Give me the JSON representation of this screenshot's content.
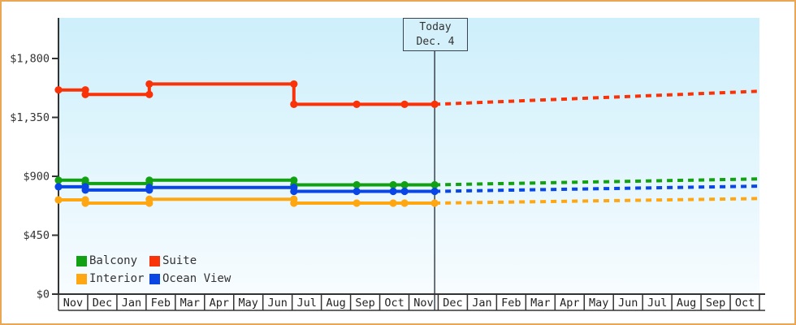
{
  "window": {
    "border_color": "#e9a755",
    "background": "#ffffff"
  },
  "today_marker": {
    "title": "Today",
    "date": "Dec. 4",
    "month_offset": 12.88
  },
  "chart_data": {
    "type": "line",
    "title": "",
    "xlabel": "",
    "ylabel": "",
    "grid": false,
    "plot_background": {
      "top": "#cdeffb",
      "bottom": "#f7fcff"
    },
    "axis_color": "#333333",
    "ylim": [
      0,
      2100
    ],
    "y_ticks": [
      {
        "label": "$0",
        "value": 0
      },
      {
        "label": "$450",
        "value": 450
      },
      {
        "label": "$900",
        "value": 900
      },
      {
        "label": "$1,350",
        "value": 1350
      },
      {
        "label": "$1,800",
        "value": 1800
      }
    ],
    "categories": [
      "Nov",
      "Dec",
      "Jan",
      "Feb",
      "Mar",
      "Apr",
      "May",
      "Jun",
      "Jul",
      "Aug",
      "Sep",
      "Oct",
      "Nov",
      "Dec",
      "Jan",
      "Feb",
      "Mar",
      "Apr",
      "May",
      "Jun",
      "Jul",
      "Aug",
      "Sep",
      "Oct"
    ],
    "x_axis_note": "month_offset 0 = start of first Nov; 24 = right edge of plot",
    "series": [
      {
        "name": "Suite",
        "color": "#fa3208",
        "history": [
          {
            "m": 0.0,
            "price": 1560
          },
          {
            "m": 0.92,
            "price": 1560
          },
          {
            "m": 0.92,
            "price": 1525
          },
          {
            "m": 3.11,
            "price": 1525
          },
          {
            "m": 3.11,
            "price": 1605
          },
          {
            "m": 8.06,
            "price": 1605
          },
          {
            "m": 8.06,
            "price": 1450
          },
          {
            "m": 10.21,
            "price": 1450
          },
          {
            "m": 11.85,
            "price": 1450
          },
          {
            "m": 12.88,
            "price": 1450
          }
        ],
        "forecast": {
          "end_m": 24,
          "end_price": 1550
        }
      },
      {
        "name": "Balcony",
        "color": "#12a112",
        "history": [
          {
            "m": 0.0,
            "price": 870
          },
          {
            "m": 0.92,
            "price": 870
          },
          {
            "m": 0.92,
            "price": 845
          },
          {
            "m": 3.11,
            "price": 845
          },
          {
            "m": 3.11,
            "price": 870
          },
          {
            "m": 8.06,
            "price": 870
          },
          {
            "m": 8.06,
            "price": 835
          },
          {
            "m": 10.21,
            "price": 835
          },
          {
            "m": 11.46,
            "price": 835
          },
          {
            "m": 11.85,
            "price": 835
          },
          {
            "m": 12.88,
            "price": 835
          }
        ],
        "forecast": {
          "end_m": 24,
          "end_price": 880
        }
      },
      {
        "name": "Ocean View",
        "color": "#0a46e4",
        "history": [
          {
            "m": 0.0,
            "price": 820
          },
          {
            "m": 0.92,
            "price": 820
          },
          {
            "m": 0.92,
            "price": 795
          },
          {
            "m": 3.11,
            "price": 795
          },
          {
            "m": 3.11,
            "price": 815
          },
          {
            "m": 8.06,
            "price": 815
          },
          {
            "m": 8.06,
            "price": 785
          },
          {
            "m": 10.21,
            "price": 785
          },
          {
            "m": 11.46,
            "price": 785
          },
          {
            "m": 11.85,
            "price": 785
          },
          {
            "m": 12.88,
            "price": 785
          }
        ],
        "forecast": {
          "end_m": 24,
          "end_price": 825
        }
      },
      {
        "name": "Interior",
        "color": "#ffa712",
        "history": [
          {
            "m": 0.0,
            "price": 720
          },
          {
            "m": 0.92,
            "price": 720
          },
          {
            "m": 0.92,
            "price": 695
          },
          {
            "m": 3.11,
            "price": 695
          },
          {
            "m": 3.11,
            "price": 725
          },
          {
            "m": 8.06,
            "price": 725
          },
          {
            "m": 8.06,
            "price": 695
          },
          {
            "m": 10.21,
            "price": 695
          },
          {
            "m": 11.46,
            "price": 695
          },
          {
            "m": 11.85,
            "price": 695
          },
          {
            "m": 12.88,
            "price": 695
          }
        ],
        "forecast": {
          "end_m": 24,
          "end_price": 730
        }
      }
    ],
    "legend": {
      "position": "bottom-left-inside",
      "rows": [
        [
          {
            "label": "Balcony",
            "color": "#12a112"
          },
          {
            "label": "Suite",
            "color": "#fa3208"
          }
        ],
        [
          {
            "label": "Interior",
            "color": "#ffa712"
          },
          {
            "label": "Ocean View",
            "color": "#0a46e4"
          }
        ]
      ]
    }
  }
}
